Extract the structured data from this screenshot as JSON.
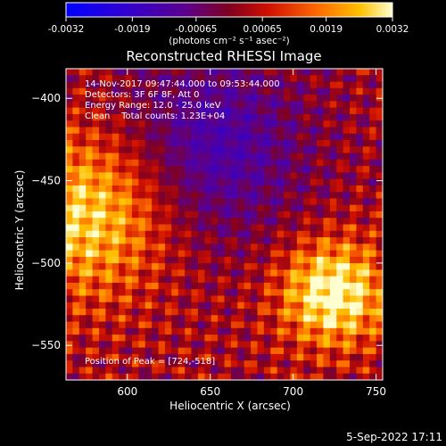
{
  "chart_data": {
    "type": "heatmap",
    "title": "Reconstructed RHESSI Image",
    "xlabel": "Heliocentric X (arcsec)",
    "ylabel": "Heliocentric Y (arcsec)",
    "xlim": [
      563,
      754
    ],
    "ylim": [
      -571,
      -382
    ],
    "xticks": [
      600,
      650,
      700,
      750
    ],
    "yticks": [
      -400,
      -450,
      -500,
      -550
    ],
    "colorbar": {
      "range": [
        -0.0032,
        0.0032
      ],
      "ticks": [
        -0.0032,
        -0.0019,
        -0.00065,
        0.00065,
        0.0019,
        0.0032
      ],
      "tick_labels": [
        "-0.0032",
        "-0.0019",
        "-0.00065",
        "0.00065",
        "0.0019",
        "0.0032"
      ],
      "unit_label": "(photons cm⁻² s⁻¹ asec⁻²)",
      "colormap": [
        "#0000ff",
        "#4000c0",
        "#600090",
        "#800000",
        "#ff4000",
        "#ffb000",
        "#ffffc0"
      ]
    },
    "info_lines": [
      "14-Nov-2017 09:47:44.000 to 09:53:44.000",
      "Detectors: 3F 6F 8F, Att 0",
      "Energy Range: 12.0 - 25.0 keV",
      "Clean    Total counts: 1.23E+04"
    ],
    "peak_label": "Position of Peak = [724,-518]",
    "peak": [
      724,
      -518
    ]
  },
  "footer": {
    "date": "5-Sep-2022 17:11"
  }
}
